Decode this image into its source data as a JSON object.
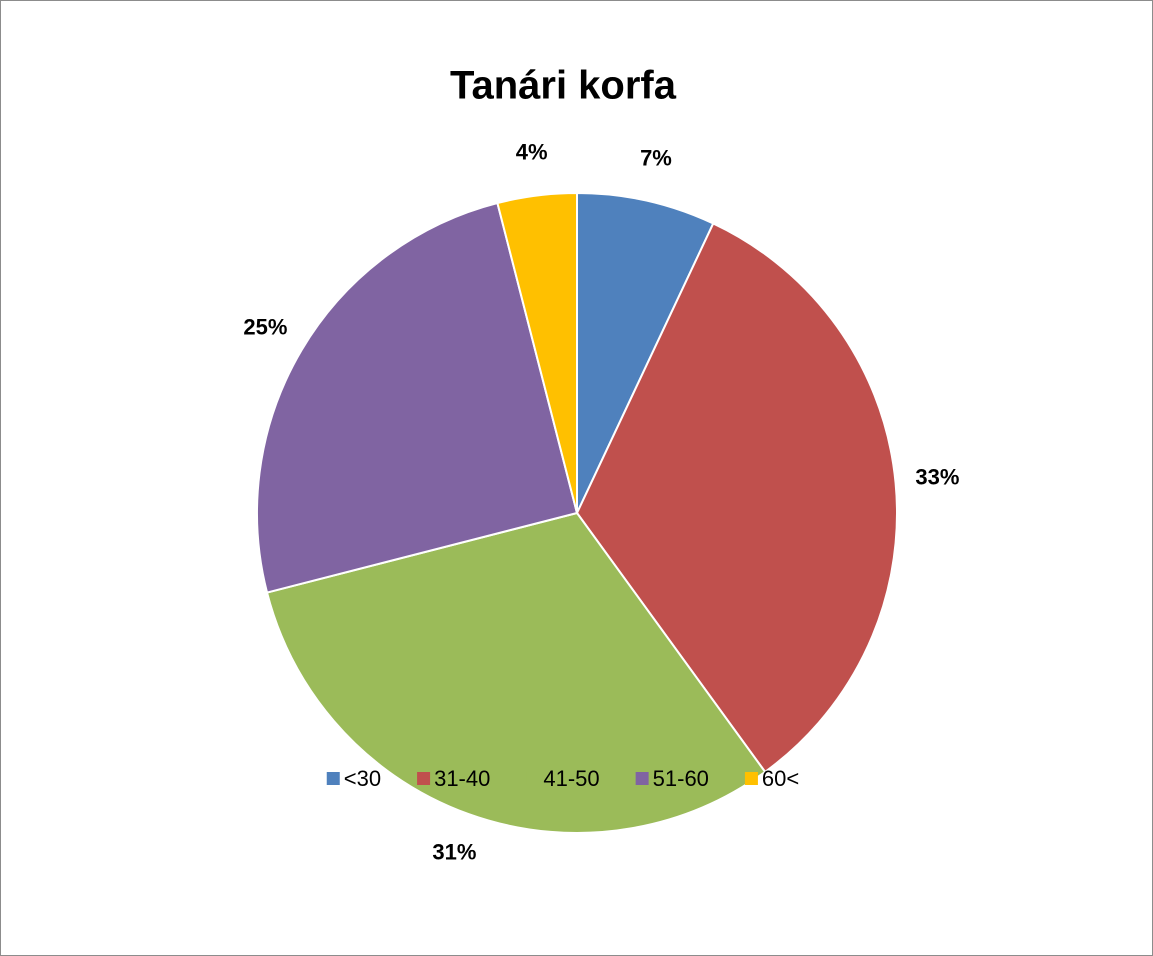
{
  "chart_data": {
    "type": "pie",
    "title": "Tanári korfa",
    "categories": [
      "<30",
      "31-40",
      "41-50",
      "51-60",
      "60<"
    ],
    "values": [
      7,
      33,
      31,
      25,
      4
    ],
    "value_labels": [
      "7%",
      "33%",
      "31%",
      "25%",
      "4%"
    ],
    "colors": [
      "#4f81bd",
      "#c0504d",
      "#9bbb59",
      "#8064a2",
      "#ffc000"
    ],
    "legend": "bottom"
  }
}
